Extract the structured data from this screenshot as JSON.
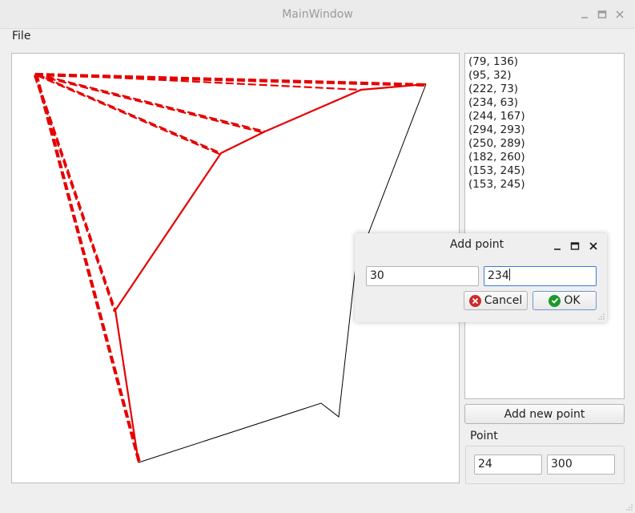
{
  "window": {
    "title": "MainWindow"
  },
  "menu": {
    "file_label": "File"
  },
  "points": [
    "(79, 136)",
    "(95, 32)",
    "(222, 73)",
    "(234, 63)",
    "(244, 167)",
    "(294, 293)",
    "(250, 289)",
    "(182, 260)",
    "(153, 245)",
    "(153, 245)"
  ],
  "add_button_label": "Add new point",
  "point_group": {
    "label": "Point",
    "x_value": "24",
    "y_value": "300"
  },
  "dialog": {
    "title": "Add point",
    "x_value": "30",
    "y_value": "234",
    "cancel_label": "Cancel",
    "ok_label": "OK"
  },
  "colors": {
    "accent_lines": "#e60000",
    "hull_line": "#000000",
    "ok_icon": "#1a9a2a",
    "cancel_icon": "#cc2a2a",
    "focus": "#3a7bd5"
  }
}
